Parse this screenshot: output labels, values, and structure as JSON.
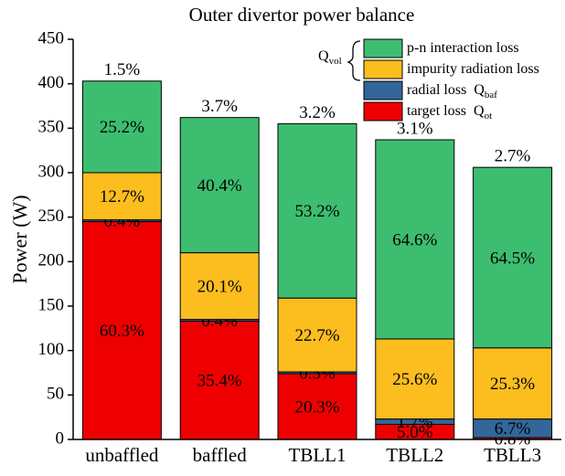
{
  "chart_data": {
    "type": "stacked-bar",
    "title": "Outer divertor power balance",
    "ylabel": "Power (W)",
    "categories": [
      "unbaffled",
      "baffled",
      "TBLL1",
      "TBLL2",
      "TBLL3"
    ],
    "series": [
      {
        "name": "target loss",
        "symbol": "Q",
        "subscript": "ot",
        "color": "#ee0000",
        "values": [
          245,
          133,
          74,
          17,
          2
        ],
        "value_labels": [
          "60.3%",
          "35.4%",
          "20.3%",
          "5.0%",
          "0.8%"
        ]
      },
      {
        "name": "radial loss",
        "symbol": "Q",
        "subscript": "baf",
        "color": "#33669a",
        "values": [
          2,
          2,
          2,
          6,
          21
        ],
        "value_labels": [
          "0.4%",
          "0.4%",
          "0.5%",
          "1.7%",
          "6.7%"
        ]
      },
      {
        "name": "impurity radiation loss",
        "color": "#fcbd1f",
        "values": [
          53,
          75,
          83,
          90,
          80
        ],
        "value_labels": [
          "12.7%",
          "20.1%",
          "22.7%",
          "25.6%",
          "25.3%"
        ]
      },
      {
        "name": "p-n interaction loss",
        "color": "#3dbd6f",
        "values": [
          103,
          152,
          196,
          224,
          203
        ],
        "value_labels": [
          "25.2%",
          "40.4%",
          "53.2%",
          "64.6%",
          "64.5%"
        ]
      }
    ],
    "top_labels": [
      "1.5%",
      "3.7%",
      "3.2%",
      "3.1%",
      "2.7%"
    ],
    "legend_group": {
      "symbol": "Q",
      "subscript": "vol"
    },
    "ylim": [
      0,
      450
    ],
    "yticks": [
      0,
      50,
      100,
      150,
      200,
      250,
      300,
      350,
      400,
      450
    ]
  }
}
